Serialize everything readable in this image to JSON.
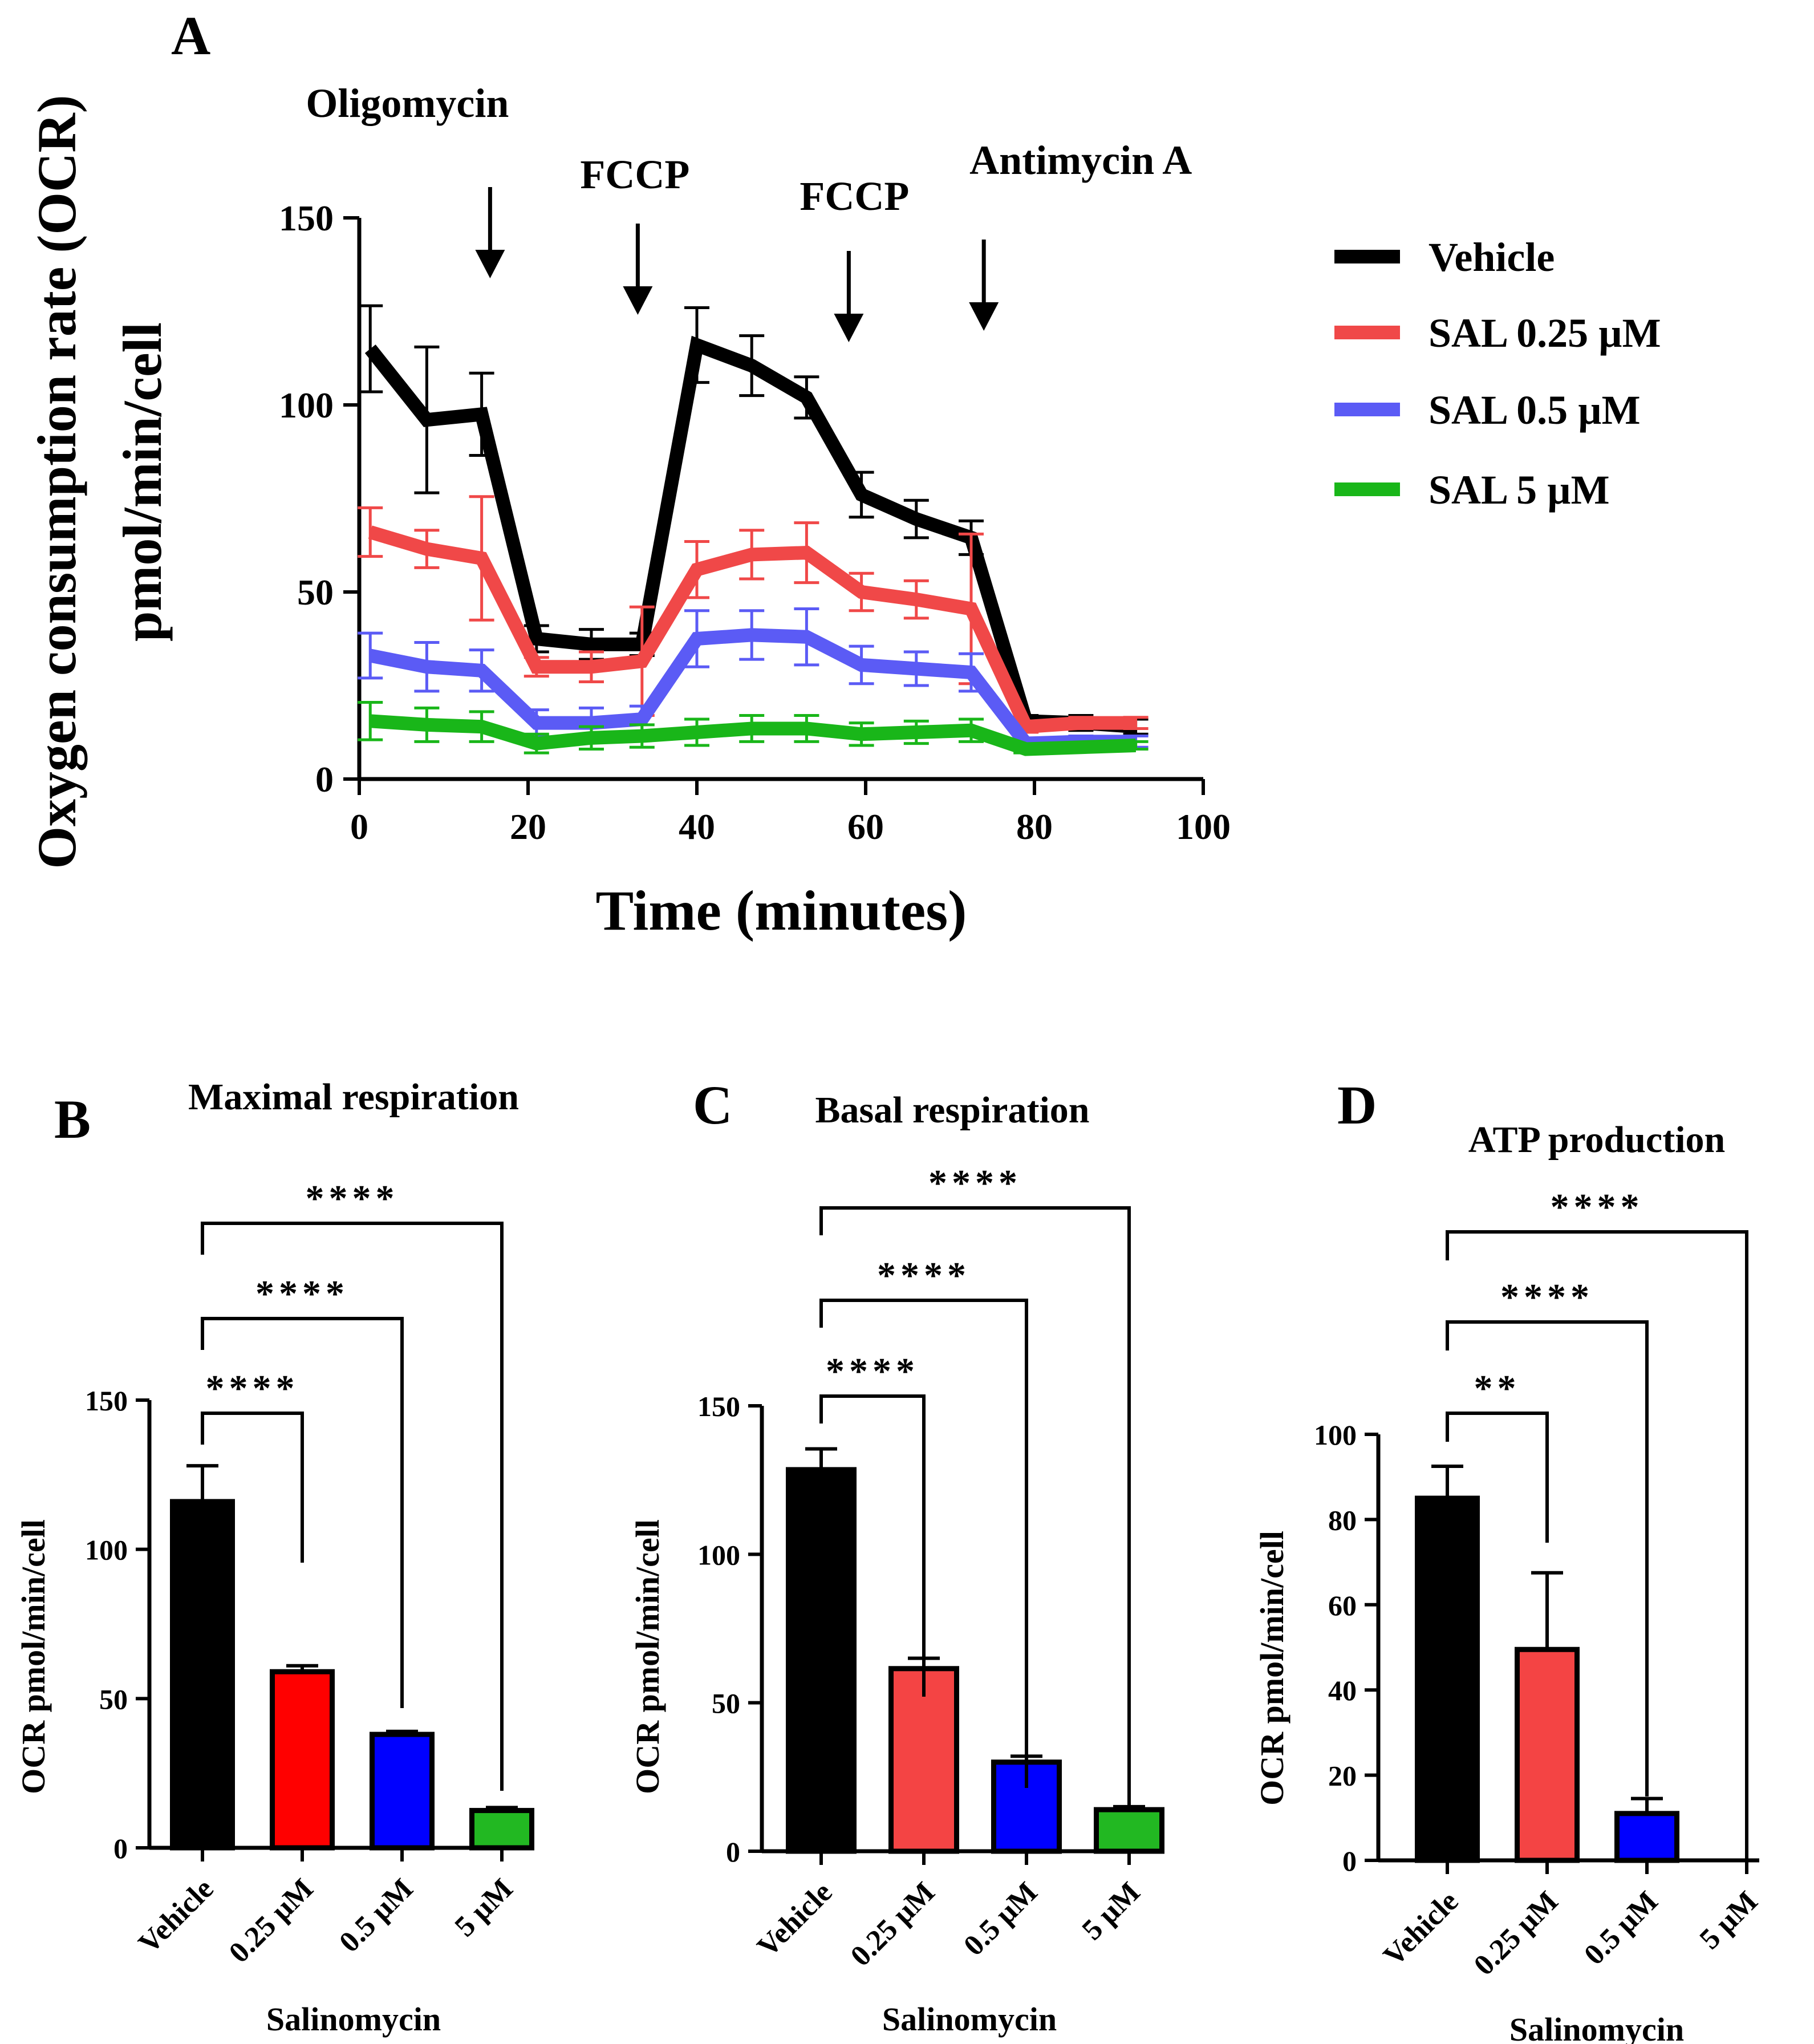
{
  "panels": {
    "A": {
      "letter": "A"
    },
    "B": {
      "letter": "B"
    },
    "C": {
      "letter": "C"
    },
    "D": {
      "letter": "D"
    }
  },
  "colors": {
    "vehicle": "#000000",
    "sal_025_line": "#f04848",
    "sal_05_line": "#5b5bf5",
    "sal_5_line": "#19b619",
    "sal_025_bar_B": "#ff0000",
    "sal_025_bar": "#f44444",
    "sal_05_bar": "#0000ff",
    "sal_5_bar": "#22b822"
  },
  "chart_data": [
    {
      "id": "A",
      "type": "line",
      "title": "",
      "xlabel": "Time (minutes)",
      "ylabel_line1": "Oxygen consumption rate (OCR)",
      "ylabel_line2": "pmol/min/cell",
      "xlim": [
        0,
        100
      ],
      "ylim": [
        0,
        150
      ],
      "xticks": [
        0,
        20,
        40,
        60,
        80,
        100
      ],
      "yticks": [
        0,
        50,
        100,
        150
      ],
      "x": [
        1.3,
        8,
        14.5,
        21,
        27.5,
        33.5,
        40,
        46.5,
        53,
        59.5,
        66,
        72.5,
        79,
        85.5,
        92
      ],
      "injections": [
        {
          "label": "Oligomycin",
          "x": 15.5
        },
        {
          "label": "FCCP",
          "x": 33
        },
        {
          "label": "FCCP",
          "x": 58
        },
        {
          "label": "Antimycin A",
          "x": 74
        }
      ],
      "legend_position": "right",
      "series": [
        {
          "name": "Vehicle",
          "color_key": "vehicle",
          "values": [
            115,
            96,
            97.5,
            37.5,
            36,
            36,
            116,
            110.5,
            102,
            76,
            69.5,
            64.5,
            15.5,
            15,
            14
          ],
          "errors": [
            11.5,
            19.5,
            11,
            3.5,
            4,
            3,
            10,
            8,
            5.5,
            6,
            5,
            4.5,
            1.5,
            2,
            2
          ]
        },
        {
          "name": "SAL 0.25 µM",
          "color_key": "sal_025_line",
          "values": [
            66,
            61.5,
            59,
            30,
            30,
            31.5,
            56,
            60,
            60.5,
            50,
            48,
            45.5,
            14,
            15,
            15
          ],
          "errors": [
            6.5,
            5,
            16.5,
            2.5,
            4,
            14.5,
            7.5,
            6.5,
            8,
            5,
            5,
            20,
            1.5,
            1.5,
            1.5
          ]
        },
        {
          "name": "SAL 0.5 µM",
          "color_key": "sal_05_line",
          "values": [
            33,
            30,
            29,
            15,
            15,
            16,
            37.5,
            38.5,
            38,
            30.5,
            29.5,
            28.5,
            9.5,
            10,
            10
          ],
          "errors": [
            6,
            6.5,
            5.5,
            3.5,
            4,
            3.5,
            7.5,
            6.5,
            7.5,
            5,
            4.5,
            5,
            1.5,
            1.5,
            1.5
          ]
        },
        {
          "name": "SAL 5 µM",
          "color_key": "sal_5_line",
          "values": [
            15.5,
            14.5,
            14,
            9.5,
            11,
            11.5,
            12.5,
            13.5,
            13.5,
            12,
            12.5,
            13,
            8,
            8.5,
            9
          ],
          "errors": [
            5,
            4.5,
            4,
            2.5,
            3,
            3,
            3.5,
            3.5,
            3.5,
            3,
            3,
            3,
            1,
            1,
            1
          ]
        }
      ]
    },
    {
      "id": "B",
      "type": "bar",
      "title": "Maximal respiration",
      "xlabel": "Salinomycin",
      "ylabel": "OCR pmol/min/cell",
      "ylim": [
        0,
        150
      ],
      "yticks": [
        0,
        50,
        100,
        150
      ],
      "categories": [
        "Vehicle",
        "0.25 µM",
        "0.5 µM",
        "5 µM"
      ],
      "values": [
        116,
        59,
        38,
        12.5
      ],
      "errors": [
        12,
        2,
        1,
        1
      ],
      "bar_color_keys": [
        "vehicle",
        "sal_025_bar_B",
        "sal_05_bar",
        "sal_5_bar"
      ],
      "significance": [
        {
          "from": 0,
          "to": 1,
          "label": "****"
        },
        {
          "from": 0,
          "to": 2,
          "label": "****"
        },
        {
          "from": 0,
          "to": 3,
          "label": "****"
        }
      ]
    },
    {
      "id": "C",
      "type": "bar",
      "title": "Basal respiration",
      "xlabel": "Salinomycin",
      "ylabel": "OCR pmol/min/cell",
      "ylim": [
        0,
        150
      ],
      "yticks": [
        0,
        50,
        100,
        150
      ],
      "categories": [
        "Vehicle",
        "0.25 µM",
        "0.5 µM",
        "5 µM"
      ],
      "values": [
        128.5,
        61.5,
        30,
        14
      ],
      "errors": [
        7,
        3.5,
        2,
        1
      ],
      "bar_color_keys": [
        "vehicle",
        "sal_025_bar",
        "sal_05_bar",
        "sal_5_bar"
      ],
      "significance": [
        {
          "from": 0,
          "to": 1,
          "label": "****"
        },
        {
          "from": 0,
          "to": 2,
          "label": "****"
        },
        {
          "from": 0,
          "to": 3,
          "label": "****"
        }
      ]
    },
    {
      "id": "D",
      "type": "bar",
      "title": "ATP production",
      "xlabel": "Salinomycin",
      "ylabel": "OCR pmol/min/cell",
      "ylim": [
        0,
        100
      ],
      "yticks": [
        0,
        20,
        40,
        60,
        80,
        100
      ],
      "categories": [
        "Vehicle",
        "0.25 µM",
        "0.5 µM",
        "5 µM"
      ],
      "values": [
        85,
        49.5,
        11,
        0
      ],
      "errors": [
        7.5,
        18,
        3.5,
        0
      ],
      "bar_color_keys": [
        "vehicle",
        "sal_025_bar",
        "sal_05_bar",
        "sal_5_bar"
      ],
      "significance": [
        {
          "from": 0,
          "to": 1,
          "label": "**"
        },
        {
          "from": 0,
          "to": 2,
          "label": "****"
        },
        {
          "from": 0,
          "to": 3,
          "label": "****"
        }
      ]
    }
  ]
}
